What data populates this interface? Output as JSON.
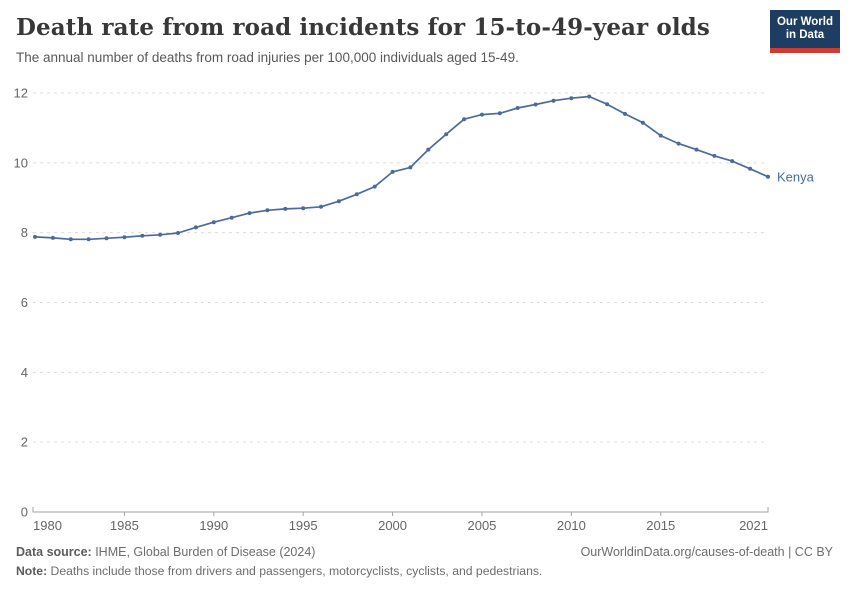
{
  "header": {
    "title": "Death rate from road incidents for 15-to-49-year olds",
    "subtitle": "The annual number of deaths from road injuries per 100,000 individuals aged 15-49.",
    "logo_line1": "Our World",
    "logo_line2": "in Data"
  },
  "chart_data": {
    "type": "line",
    "title": "Death rate from road incidents for 15-to-49-year olds",
    "xlabel": "",
    "ylabel": "",
    "xlim": [
      1980,
      2021
    ],
    "ylim": [
      0,
      12
    ],
    "x_ticks": [
      1980,
      1985,
      1990,
      1995,
      2000,
      2005,
      2010,
      2015,
      2021
    ],
    "y_ticks": [
      0,
      2,
      4,
      6,
      8,
      10,
      12
    ],
    "grid": "horizontal-dashed",
    "legend_position": "entity-label-right-of-line",
    "series": [
      {
        "name": "Kenya",
        "color": "#4C6A9C",
        "x": [
          1980,
          1981,
          1982,
          1983,
          1984,
          1985,
          1986,
          1987,
          1988,
          1989,
          1990,
          1991,
          1992,
          1993,
          1994,
          1995,
          1996,
          1997,
          1998,
          1999,
          2000,
          2001,
          2002,
          2003,
          2004,
          2005,
          2006,
          2007,
          2008,
          2009,
          2010,
          2011,
          2012,
          2013,
          2014,
          2015,
          2016,
          2017,
          2018,
          2019,
          2020,
          2021
        ],
        "values": [
          7.88,
          7.85,
          7.81,
          7.81,
          7.84,
          7.87,
          7.91,
          7.94,
          7.99,
          8.15,
          8.3,
          8.43,
          8.56,
          8.64,
          8.68,
          8.7,
          8.74,
          8.9,
          9.1,
          9.32,
          9.74,
          9.87,
          10.38,
          10.82,
          11.25,
          11.38,
          11.42,
          11.57,
          11.67,
          11.78,
          11.85,
          11.9,
          11.68,
          11.4,
          11.15,
          10.78,
          10.55,
          10.38,
          10.2,
          10.05,
          9.83,
          9.6
        ]
      }
    ]
  },
  "footer": {
    "source_label": "Data source:",
    "source_text": " IHME, Global Burden of Disease (2024)",
    "url_text": "OurWorldinData.org/causes-of-death | CC BY",
    "note_label": "Note:",
    "note_text": " Deaths include those from drivers and passengers, motorcyclists, cyclists, and pedestrians."
  },
  "colors": {
    "line": "#4C6A9C",
    "logo_bg": "#1d3d63",
    "logo_accent": "#d13b2f",
    "grid": "#dcdcdc",
    "axis": "#a3a3a3"
  }
}
